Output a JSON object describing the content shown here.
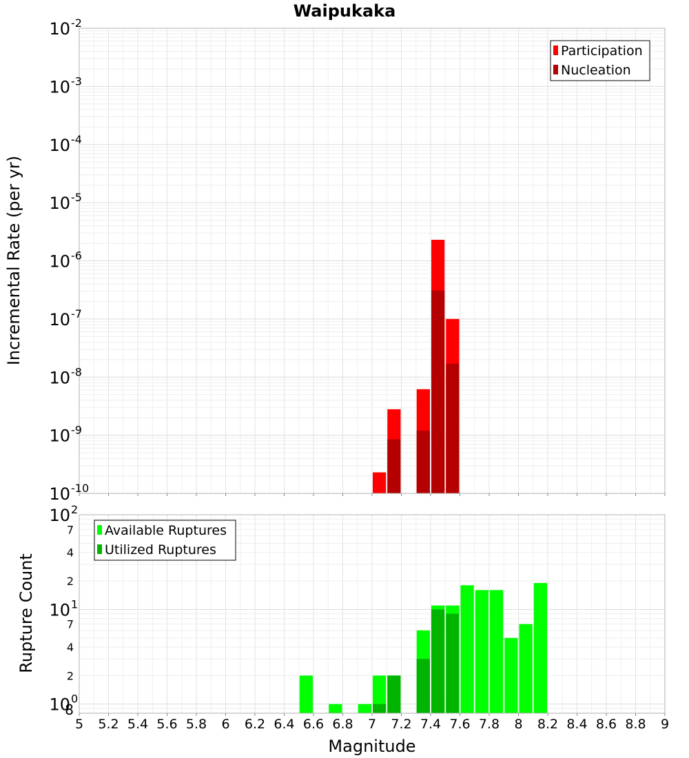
{
  "chart_data": [
    {
      "type": "bar",
      "title": "Waipukaka",
      "xlabel": "Magnitude",
      "ylabel": "Incremental Rate (per yr)",
      "yscale": "log",
      "xlim": [
        5,
        9
      ],
      "ylim": [
        1e-10,
        0.01
      ],
      "grid": true,
      "bar_width": 0.1,
      "legend_position": "top-right",
      "x_ticks": [
        "5",
        "5.2",
        "5.4",
        "5.6",
        "5.8",
        "6",
        "6.2",
        "6.4",
        "6.6",
        "6.8",
        "7",
        "7.2",
        "7.4",
        "7.6",
        "7.8",
        "8",
        "8.2",
        "8.4",
        "8.6",
        "8.8",
        "9"
      ],
      "y_tick_bases": [
        "10",
        "10",
        "10",
        "10",
        "10",
        "10",
        "10",
        "10",
        "10"
      ],
      "y_tick_exponents": [
        "-2",
        "-3",
        "-4",
        "-5",
        "-6",
        "-7",
        "-8",
        "-9",
        "-10"
      ],
      "series": [
        {
          "name": "Participation",
          "color": "#ff0000",
          "points": [
            {
              "x": 7.05,
              "y": 2.3e-10
            },
            {
              "x": 7.15,
              "y": 2.8e-09
            },
            {
              "x": 7.35,
              "y": 6.2e-09
            },
            {
              "x": 7.45,
              "y": 2.3e-06
            },
            {
              "x": 7.55,
              "y": 1e-07
            }
          ]
        },
        {
          "name": "Nucleation",
          "color": "#b40000",
          "points": [
            {
              "x": 7.15,
              "y": 8.5e-10
            },
            {
              "x": 7.35,
              "y": 1.2e-09
            },
            {
              "x": 7.45,
              "y": 3.1e-07
            },
            {
              "x": 7.55,
              "y": 1.7e-08
            }
          ]
        }
      ]
    },
    {
      "type": "bar",
      "xlabel": "Magnitude",
      "ylabel": "Rupture Count",
      "yscale": "log",
      "xlim": [
        5,
        9
      ],
      "ylim": [
        0.8,
        100
      ],
      "grid": true,
      "bar_width": 0.1,
      "legend_position": "top-left",
      "x_ticks": [
        "5",
        "5.2",
        "5.4",
        "5.6",
        "5.8",
        "6",
        "6.2",
        "6.4",
        "6.6",
        "6.8",
        "7",
        "7.2",
        "7.4",
        "7.6",
        "7.8",
        "8",
        "8.2",
        "8.4",
        "8.6",
        "8.8",
        "9"
      ],
      "major_y_ticks": [
        {
          "value": 1,
          "base": "10",
          "exp": "0"
        },
        {
          "value": 10,
          "base": "10",
          "exp": "1"
        },
        {
          "value": 100,
          "base": "10",
          "exp": "2"
        }
      ],
      "minor_y_ticks": [
        {
          "value": 0.8,
          "label": "8"
        },
        {
          "value": 2,
          "label": "2"
        },
        {
          "value": 4,
          "label": "4"
        },
        {
          "value": 7,
          "label": "7"
        },
        {
          "value": 20,
          "label": "2"
        },
        {
          "value": 40,
          "label": "4"
        },
        {
          "value": 70,
          "label": "7"
        }
      ],
      "series": [
        {
          "name": "Available Ruptures",
          "color": "#00ff00",
          "points": [
            {
              "x": 6.55,
              "y": 2
            },
            {
              "x": 6.75,
              "y": 1
            },
            {
              "x": 6.95,
              "y": 1
            },
            {
              "x": 7.05,
              "y": 2
            },
            {
              "x": 7.15,
              "y": 2
            },
            {
              "x": 7.35,
              "y": 6
            },
            {
              "x": 7.45,
              "y": 11
            },
            {
              "x": 7.55,
              "y": 11
            },
            {
              "x": 7.65,
              "y": 18
            },
            {
              "x": 7.75,
              "y": 16
            },
            {
              "x": 7.85,
              "y": 16
            },
            {
              "x": 7.95,
              "y": 5
            },
            {
              "x": 8.05,
              "y": 7
            },
            {
              "x": 8.15,
              "y": 19
            }
          ]
        },
        {
          "name": "Utilized Ruptures",
          "color": "#00b400",
          "points": [
            {
              "x": 7.05,
              "y": 1
            },
            {
              "x": 7.15,
              "y": 2
            },
            {
              "x": 7.35,
              "y": 3
            },
            {
              "x": 7.45,
              "y": 10
            },
            {
              "x": 7.55,
              "y": 9
            }
          ]
        }
      ]
    }
  ]
}
